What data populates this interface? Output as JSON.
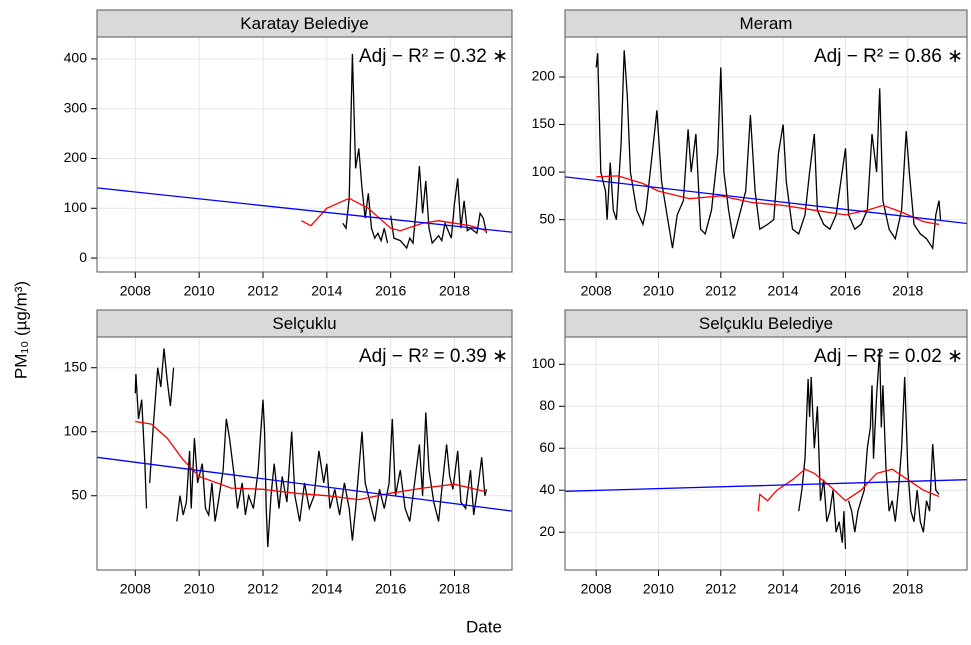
{
  "ylabel": "PM₁₀ (µg/m³)",
  "xlabel": "Date",
  "chart_data": [
    {
      "type": "line",
      "title": "Karatay Belediye",
      "annotation": "Adj − R² = 0.32 ∗",
      "xlim": [
        2006.8,
        2019.8
      ],
      "xticks": [
        2008,
        2010,
        2012,
        2014,
        2016,
        2018
      ],
      "ylim": [
        -28,
        444
      ],
      "yticks": [
        0,
        100,
        200,
        300,
        400
      ],
      "grid": true,
      "series": [
        {
          "color": "#000000",
          "x": [
            2014.5,
            2014.6,
            2014.7,
            2014.8,
            2014.9,
            2015.0,
            2015.1,
            2015.2,
            2015.3,
            2015.4,
            2015.5,
            2015.6,
            2015.7,
            2015.8,
            2015.9,
            2015.95,
            2016.0,
            2016.1,
            2016.3,
            2016.5,
            2016.6,
            2016.7,
            2016.8,
            2016.9,
            2017.0,
            2017.1,
            2017.2,
            2017.3,
            2017.5,
            2017.6,
            2017.7,
            2017.9,
            2018.0,
            2018.1,
            2018.2,
            2018.3,
            2018.4,
            2018.5,
            2018.7,
            2018.8,
            2018.9,
            2019.0
          ],
          "values": [
            70,
            60,
            120,
            410,
            180,
            220,
            140,
            80,
            130,
            60,
            40,
            50,
            35,
            60,
            30,
            null,
            85,
            40,
            35,
            20,
            40,
            30,
            100,
            185,
            90,
            155,
            60,
            30,
            45,
            35,
            70,
            40,
            110,
            160,
            60,
            115,
            55,
            60,
            50,
            90,
            80,
            50
          ]
        },
        {
          "color": "#ff0000",
          "x": [
            2013.2,
            2013.5,
            2014.0,
            2014.7,
            2015.3,
            2016.0,
            2016.3,
            2017.0,
            2017.5,
            2018.5,
            2019.0
          ],
          "values": [
            75,
            65,
            100,
            120,
            100,
            60,
            55,
            70,
            75,
            65,
            55
          ]
        },
        {
          "color": "#0000ff",
          "x": [
            2006.8,
            2019.8
          ],
          "values": [
            141,
            52
          ]
        }
      ]
    },
    {
      "type": "line",
      "title": "Meram",
      "annotation": "Adj − R² = 0.86 ∗",
      "xlim": [
        2007.0,
        2019.9
      ],
      "xticks": [
        2008,
        2010,
        2012,
        2014,
        2016,
        2018
      ],
      "ylim": [
        -5,
        242
      ],
      "yticks": [
        50,
        100,
        150,
        200
      ],
      "grid": true,
      "series": [
        {
          "color": "#000000",
          "x": [
            2008.0,
            2008.05,
            2008.15,
            2008.3,
            2008.35,
            2008.45,
            2008.55,
            2008.65,
            2008.8,
            2008.9,
            2009.0,
            2009.1,
            2009.3,
            2009.5,
            2009.6,
            2009.8,
            2009.95,
            2010.1,
            2010.3,
            2010.45,
            2010.6,
            2010.8,
            2010.95,
            2011.05,
            2011.2,
            2011.35,
            2011.5,
            2011.7,
            2011.9,
            2012.0,
            2012.1,
            2012.25,
            2012.4,
            2012.6,
            2012.8,
            2012.95,
            2013.1,
            2013.25,
            2013.5,
            2013.7,
            2013.85,
            2014.0,
            2014.1,
            2014.3,
            2014.5,
            2014.7,
            2014.85,
            2015.0,
            2015.1,
            2015.3,
            2015.5,
            2015.7,
            2015.85,
            2016.0,
            2016.1,
            2016.3,
            2016.5,
            2016.7,
            2016.85,
            2017.0,
            2017.1,
            2017.2,
            2017.4,
            2017.6,
            2017.8,
            2017.95,
            2018.05,
            2018.2,
            2018.4,
            2018.6,
            2018.8,
            2018.9,
            2019.0,
            2019.05
          ],
          "values": [
            210,
            225,
            100,
            80,
            50,
            110,
            60,
            50,
            130,
            228,
            180,
            100,
            60,
            45,
            60,
            120,
            165,
            90,
            50,
            20,
            55,
            70,
            145,
            100,
            140,
            40,
            35,
            60,
            120,
            210,
            100,
            60,
            30,
            55,
            80,
            160,
            80,
            40,
            45,
            50,
            120,
            150,
            90,
            40,
            35,
            55,
            100,
            140,
            60,
            45,
            40,
            55,
            90,
            125,
            55,
            40,
            45,
            60,
            140,
            100,
            188,
            70,
            40,
            30,
            60,
            143,
            100,
            45,
            35,
            30,
            20,
            55,
            70,
            50
          ]
        },
        {
          "color": "#ff0000",
          "x": [
            2008.0,
            2008.7,
            2009.5,
            2010.0,
            2011.0,
            2012.0,
            2013.0,
            2014.0,
            2015.0,
            2016.0,
            2016.7,
            2017.2,
            2017.8,
            2018.5,
            2019.0
          ],
          "values": [
            95,
            96,
            88,
            80,
            72,
            75,
            68,
            65,
            60,
            55,
            60,
            65,
            58,
            48,
            45
          ]
        },
        {
          "color": "#0000ff",
          "x": [
            2007.0,
            2019.9
          ],
          "values": [
            95,
            46
          ]
        }
      ]
    },
    {
      "type": "line",
      "title": "Selçuklu",
      "annotation": "Adj − R² = 0.39 ∗",
      "xlim": [
        2006.8,
        2019.8
      ],
      "xticks": [
        2008,
        2010,
        2012,
        2014,
        2016,
        2018
      ],
      "ylim": [
        -8,
        174
      ],
      "yticks": [
        50,
        100,
        150
      ],
      "grid": true,
      "series": [
        {
          "color": "#000000",
          "x": [
            2008.0,
            2008.02,
            2008.1,
            2008.2,
            2008.3,
            2008.35,
            2008.4,
            2008.45,
            2008.55,
            2008.7,
            2008.8,
            2008.9,
            2009.0,
            2009.1,
            2009.2,
            2009.25,
            2009.3,
            2009.4,
            2009.5,
            2009.6,
            2009.7,
            2009.75,
            2009.85,
            2009.95,
            2010.1,
            2010.2,
            2010.3,
            2010.4,
            2010.5,
            2010.6,
            2010.75,
            2010.85,
            2010.95,
            2011.1,
            2011.2,
            2011.35,
            2011.45,
            2011.55,
            2011.7,
            2011.85,
            2012.0,
            2012.05,
            2012.1,
            2012.15,
            2012.25,
            2012.35,
            2012.5,
            2012.6,
            2012.75,
            2012.9,
            2013.0,
            2013.15,
            2013.3,
            2013.45,
            2013.6,
            2013.75,
            2013.9,
            2014.0,
            2014.1,
            2014.25,
            2014.4,
            2014.55,
            2014.7,
            2014.8,
            2014.9,
            2015.0,
            2015.1,
            2015.2,
            2015.35,
            2015.5,
            2015.65,
            2015.8,
            2015.95,
            2016.05,
            2016.15,
            2016.3,
            2016.45,
            2016.6,
            2016.75,
            2016.9,
            2017.0,
            2017.1,
            2017.2,
            2017.35,
            2017.5,
            2017.6,
            2017.75,
            2017.85,
            2017.95,
            2018.1,
            2018.2,
            2018.35,
            2018.5,
            2018.6,
            2018.75,
            2018.85,
            2018.95,
            2019.0
          ],
          "values": [
            130,
            145,
            110,
            125,
            75,
            40,
            null,
            60,
            100,
            150,
            135,
            165,
            140,
            120,
            150,
            null,
            30,
            50,
            35,
            45,
            85,
            40,
            95,
            60,
            75,
            40,
            35,
            60,
            30,
            45,
            70,
            110,
            95,
            65,
            40,
            60,
            35,
            50,
            40,
            70,
            125,
            100,
            40,
            10,
            50,
            75,
            40,
            65,
            45,
            100,
            50,
            30,
            60,
            40,
            50,
            85,
            60,
            75,
            40,
            55,
            35,
            60,
            40,
            15,
            40,
            70,
            100,
            60,
            45,
            30,
            55,
            40,
            60,
            110,
            50,
            70,
            40,
            30,
            60,
            90,
            50,
            115,
            70,
            45,
            30,
            55,
            90,
            65,
            55,
            85,
            45,
            40,
            70,
            35,
            60,
            80,
            50,
            55
          ]
        },
        {
          "color": "#ff0000",
          "x": [
            2008.0,
            2008.5,
            2009.0,
            2009.5,
            2010.0,
            2011.0,
            2012.0,
            2013.0,
            2014.0,
            2015.0,
            2016.0,
            2017.0,
            2018.0,
            2019.0
          ],
          "values": [
            108,
            106,
            95,
            78,
            65,
            56,
            55,
            52,
            50,
            47,
            52,
            56,
            59,
            53
          ]
        },
        {
          "color": "#0000ff",
          "x": [
            2006.8,
            2019.8
          ],
          "values": [
            80,
            38
          ]
        }
      ]
    },
    {
      "type": "line",
      "title": "Selçuklu Belediye",
      "annotation": "Adj − R² = 0.02 ∗",
      "xlim": [
        2007.0,
        2019.9
      ],
      "xticks": [
        2008,
        2010,
        2012,
        2014,
        2016,
        2018
      ],
      "ylim": [
        2,
        113
      ],
      "yticks": [
        20,
        40,
        60,
        80,
        100
      ],
      "grid": true,
      "series": [
        {
          "color": "#000000",
          "x": [
            2014.5,
            2014.6,
            2014.7,
            2014.8,
            2014.85,
            2014.9,
            2015.0,
            2015.1,
            2015.2,
            2015.3,
            2015.4,
            2015.5,
            2015.6,
            2015.7,
            2015.8,
            2015.9,
            2015.95,
            2016.0,
            2016.05,
            2016.1,
            2016.2,
            2016.3,
            2016.4,
            2016.5,
            2016.6,
            2016.7,
            2016.8,
            2016.85,
            2016.9,
            2017.0,
            2017.1,
            2017.15,
            2017.2,
            2017.3,
            2017.4,
            2017.5,
            2017.6,
            2017.7,
            2017.8,
            2017.9,
            2018.0,
            2018.1,
            2018.2,
            2018.3,
            2018.4,
            2018.5,
            2018.6,
            2018.7,
            2018.8,
            2018.9,
            2019.0
          ],
          "values": [
            30,
            40,
            55,
            93,
            75,
            94,
            60,
            80,
            35,
            45,
            25,
            30,
            40,
            20,
            25,
            15,
            30,
            12,
            null,
            35,
            30,
            20,
            30,
            35,
            40,
            60,
            70,
            90,
            55,
            85,
            107,
            70,
            90,
            50,
            30,
            35,
            25,
            40,
            60,
            94,
            50,
            30,
            25,
            40,
            25,
            20,
            35,
            30,
            62,
            40,
            38
          ]
        },
        {
          "color": "#ff0000",
          "x": [
            2013.2,
            2013.25,
            2013.5,
            2013.8,
            2014.3,
            2014.7,
            2015.0,
            2015.5,
            2016.0,
            2016.5,
            2017.0,
            2017.5,
            2018.0,
            2018.5,
            2019.0
          ],
          "values": [
            30,
            38,
            35,
            40,
            45,
            50,
            48,
            42,
            35,
            40,
            48,
            50,
            45,
            40,
            37
          ]
        },
        {
          "color": "#0000ff",
          "x": [
            2007.0,
            2019.9
          ],
          "values": [
            39.5,
            45
          ]
        }
      ]
    }
  ]
}
